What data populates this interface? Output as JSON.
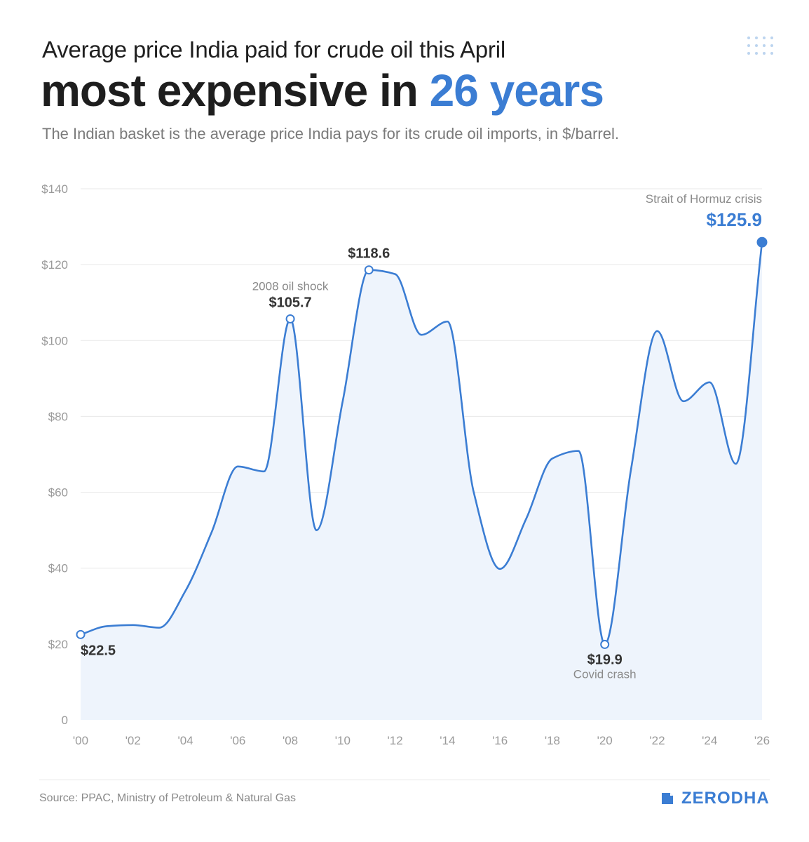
{
  "header": {
    "kicker": "Average price India paid for crude oil this April",
    "headline_main": "most expensive in ",
    "headline_accent": "26 years",
    "subtitle": "The Indian basket is the average price India pays for its crude oil imports, in $/barrel."
  },
  "chart_data": {
    "type": "area",
    "x_tick_labels": [
      "'00",
      "'02",
      "'04",
      "'06",
      "'08",
      "'10",
      "'12",
      "'14",
      "'16",
      "'18",
      "'20",
      "'22",
      "'24",
      "'26"
    ],
    "x_ticks": [
      2000,
      2002,
      2004,
      2006,
      2008,
      2010,
      2012,
      2014,
      2016,
      2018,
      2020,
      2022,
      2024,
      2026
    ],
    "y_tick_labels": [
      "0",
      "$20",
      "$40",
      "$60",
      "$80",
      "$100",
      "$120",
      "$140"
    ],
    "y_ticks": [
      0,
      20,
      40,
      60,
      80,
      100,
      120,
      140
    ],
    "xlim": [
      2000,
      2026
    ],
    "ylim": [
      0,
      140
    ],
    "grid": true,
    "series": [
      {
        "x": [
          2000,
          2001,
          2002,
          2003,
          2004,
          2005,
          2006,
          2007,
          2008,
          2009,
          2010,
          2011,
          2012,
          2013,
          2014,
          2015,
          2016,
          2017,
          2018,
          2019,
          2020,
          2021,
          2022,
          2023,
          2024,
          2025,
          2026
        ],
        "y": [
          22.5,
          24.7,
          25.0,
          24.3,
          34.0,
          49.5,
          66.8,
          65.5,
          105.7,
          50.0,
          84.0,
          118.6,
          117.5,
          101.5,
          105.0,
          60.0,
          39.8,
          53.0,
          68.9,
          70.9,
          19.9,
          66.0,
          102.5,
          84.0,
          89.0,
          67.5,
          125.9
        ]
      }
    ],
    "annotations": [
      {
        "x": 2000,
        "y": 22.5,
        "label": "$22.5",
        "note": "",
        "style": "open",
        "placement": "below-right"
      },
      {
        "x": 2008,
        "y": 105.7,
        "label": "$105.7",
        "note": "2008 oil shock",
        "style": "open",
        "placement": "above"
      },
      {
        "x": 2011,
        "y": 118.6,
        "label": "$118.6",
        "note": "",
        "style": "open",
        "placement": "above"
      },
      {
        "x": 2020,
        "y": 19.9,
        "label": "$19.9",
        "note": "Covid crash",
        "style": "open",
        "placement": "below"
      },
      {
        "x": 2026,
        "y": 125.9,
        "label": "$125.9",
        "note": "Strait of Hormuz crisis",
        "style": "filled",
        "placement": "above-left"
      }
    ],
    "colors": {
      "line": "#3b7dd3",
      "area": "#eef4fc",
      "highlight": "#3b7dd3",
      "label": "#333333",
      "note": "#8a8a8a",
      "grid": "#e8e8e8",
      "tick": "#9a9a9a"
    }
  },
  "footer": {
    "source": "Source: PPAC, Ministry of Petroleum & Natural Gas",
    "brand": "ZERODHA",
    "brand_icon": "zerodha-logo-icon"
  }
}
